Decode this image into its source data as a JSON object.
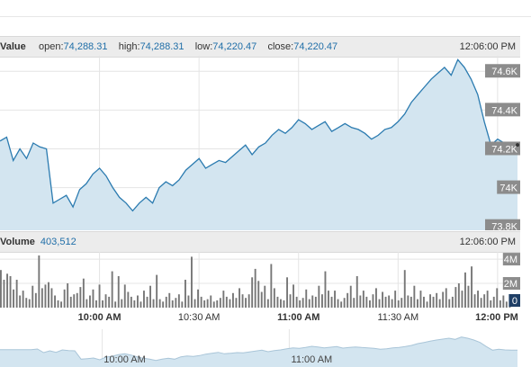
{
  "price_header": {
    "label": "Value",
    "open_label": "open:",
    "open": "74,288.31",
    "high_label": "high:",
    "high": "74,288.31",
    "low_label": "low:",
    "low": "74,220.47",
    "close_label": "close:",
    "close": "74,220.47",
    "time": "12:06:00 PM"
  },
  "volume_header": {
    "label": "Volume",
    "value": "403,512",
    "time": "12:06:00 PM"
  },
  "colors": {
    "line": "#2b7bb0",
    "area": "#d3e5f0",
    "bar": "#777777",
    "tick_badge": "#8c8c8c",
    "header_bg": "#ececec"
  },
  "chart_data": [
    {
      "type": "area",
      "y_ticks": [
        "74.6K",
        "74.4K",
        "74.2K",
        "74K",
        "73.8K"
      ],
      "ylim": [
        73780,
        74680
      ],
      "xlim": [
        "09:30",
        "12:06"
      ],
      "grid": true,
      "series": [
        {
          "x": [
            "09:30",
            "09:32",
            "09:34",
            "09:36",
            "09:38",
            "09:40",
            "09:42",
            "09:44",
            "09:46",
            "09:48",
            "09:50",
            "09:52",
            "09:54",
            "09:56",
            "09:58",
            "10:00",
            "10:02",
            "10:04",
            "10:06",
            "10:08",
            "10:10",
            "10:12",
            "10:14",
            "10:16",
            "10:18",
            "10:20",
            "10:22",
            "10:24",
            "10:26",
            "10:28",
            "10:30",
            "10:32",
            "10:34",
            "10:36",
            "10:38",
            "10:40",
            "10:42",
            "10:44",
            "10:46",
            "10:48",
            "10:50",
            "10:52",
            "10:54",
            "10:56",
            "10:58",
            "11:00",
            "11:02",
            "11:04",
            "11:06",
            "11:08",
            "11:10",
            "11:12",
            "11:14",
            "11:16",
            "11:18",
            "11:20",
            "11:22",
            "11:24",
            "11:26",
            "11:28",
            "11:30",
            "11:32",
            "11:34",
            "11:36",
            "11:38",
            "11:40",
            "11:42",
            "11:44",
            "11:46",
            "11:48",
            "11:50",
            "11:52",
            "11:54",
            "11:56",
            "11:58",
            "12:00",
            "12:02",
            "12:04",
            "12:06"
          ],
          "y": [
            74240,
            74260,
            74140,
            74200,
            74150,
            74230,
            74210,
            74200,
            73920,
            73940,
            73960,
            73900,
            73990,
            74020,
            74070,
            74100,
            74060,
            74000,
            73950,
            73920,
            73880,
            73920,
            73950,
            73920,
            74000,
            74030,
            74010,
            74040,
            74090,
            74120,
            74150,
            74100,
            74120,
            74140,
            74130,
            74160,
            74190,
            74220,
            74170,
            74210,
            74230,
            74270,
            74300,
            74280,
            74310,
            74350,
            74330,
            74300,
            74320,
            74340,
            74290,
            74310,
            74330,
            74310,
            74300,
            74280,
            74250,
            74270,
            74300,
            74310,
            74340,
            74380,
            74440,
            74480,
            74520,
            74560,
            74590,
            74620,
            74580,
            74660,
            74620,
            74560,
            74480,
            74340,
            74220,
            74250,
            74230,
            74220,
            74220
          ]
        }
      ]
    },
    {
      "type": "bar",
      "y_ticks": [
        "4M",
        "2M",
        "0"
      ],
      "ylim": [
        0,
        4600000
      ],
      "xlim": [
        "09:30",
        "12:06"
      ],
      "x_ticks": [
        {
          "label": "10:00 AM",
          "bold": true
        },
        {
          "label": "10:30 AM",
          "bold": false
        },
        {
          "label": "11:00 AM",
          "bold": true
        },
        {
          "label": "11:30 AM",
          "bold": false
        },
        {
          "label": "12:00 PM",
          "bold": true
        }
      ],
      "values": [
        3100000,
        2300000,
        2800000,
        2600000,
        1500000,
        2300000,
        1000000,
        1400000,
        800000,
        700000,
        1800000,
        1200000,
        4300000,
        1600000,
        1900000,
        2100000,
        1600000,
        1000000,
        600000,
        500000,
        1500000,
        2000000,
        900000,
        1100000,
        1200000,
        1700000,
        2400000,
        700000,
        1000000,
        1500000,
        600000,
        1900000,
        600000,
        1100000,
        900000,
        3000000,
        500000,
        2600000,
        700000,
        1900000,
        1300000,
        900000,
        600000,
        1000000,
        500000,
        1400000,
        900000,
        1800000,
        700000,
        2700000,
        700000,
        500000,
        900000,
        1200000,
        600000,
        800000,
        1100000,
        500000,
        2300000,
        1000000,
        4200000,
        700000,
        1500000,
        900000,
        600000,
        700000,
        1000000,
        500000,
        600000,
        800000,
        1400000,
        900000,
        700000,
        1200000,
        800000,
        1600000,
        1100000,
        800000,
        1100000,
        2500000,
        3200000,
        2200000,
        1300000,
        1800000,
        700000,
        3600000,
        1600000,
        900000,
        700000,
        600000,
        2500000,
        1100000,
        1900000,
        900000,
        600000,
        800000,
        1500000,
        700000,
        1000000,
        900000,
        1800000,
        1100000,
        3000000,
        1400000,
        900000,
        1400000,
        700000,
        500000,
        800000,
        1200000,
        1800000,
        800000,
        2600000,
        1000000,
        1400000,
        900000,
        600000,
        1100000,
        1600000,
        700000,
        1300000,
        900000,
        1000000,
        700000,
        1400000,
        600000,
        800000,
        3100000,
        1000000,
        900000,
        1800000,
        700000,
        1400000,
        900000,
        500000,
        1100000,
        900000,
        1200000,
        700000,
        1300000,
        1600000,
        700000,
        900000,
        1700000,
        2000000,
        1400000,
        2900000,
        1800000,
        3400000,
        1100000,
        1400000,
        800000,
        1100000,
        1400000,
        600000,
        900000,
        1600000,
        600000,
        1000000,
        500000,
        400000
      ]
    },
    {
      "type": "area",
      "x_ticks": [
        "10:00 AM",
        "11:00 AM"
      ],
      "series_ref": 0
    }
  ]
}
